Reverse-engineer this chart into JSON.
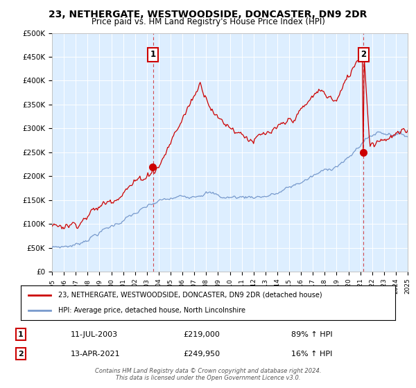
{
  "title": "23, NETHERGATE, WESTWOODSIDE, DONCASTER, DN9 2DR",
  "subtitle": "Price paid vs. HM Land Registry's House Price Index (HPI)",
  "title_fontsize": 10,
  "subtitle_fontsize": 8.5,
  "background_color": "#ffffff",
  "plot_bg_color": "#ddeeff",
  "grid_color": "#ffffff",
  "sale1": {
    "date_num": 2003.53,
    "price": 219000,
    "label": "1",
    "date_str": "11-JUL-2003",
    "hpi_change": "89% ↑ HPI"
  },
  "sale2": {
    "date_num": 2021.28,
    "price": 249950,
    "label": "2",
    "date_str": "13-APR-2021",
    "hpi_change": "16% ↑ HPI"
  },
  "sale1_formatted": "£219,000",
  "sale2_formatted": "£249,950",
  "red_color": "#cc0000",
  "blue_color": "#7799cc",
  "xmin": 1995,
  "xmax": 2025,
  "ymin": 0,
  "ymax": 500000,
  "yticks": [
    0,
    50000,
    100000,
    150000,
    200000,
    250000,
    300000,
    350000,
    400000,
    450000,
    500000
  ],
  "ytick_labels": [
    "£0",
    "£50K",
    "£100K",
    "£150K",
    "£200K",
    "£250K",
    "£300K",
    "£350K",
    "£400K",
    "£450K",
    "£500K"
  ],
  "xticks": [
    1995,
    1996,
    1997,
    1998,
    1999,
    2000,
    2001,
    2002,
    2003,
    2004,
    2005,
    2006,
    2007,
    2008,
    2009,
    2010,
    2011,
    2012,
    2013,
    2014,
    2015,
    2016,
    2017,
    2018,
    2019,
    2020,
    2021,
    2022,
    2023,
    2024,
    2025
  ],
  "legend_label_red": "23, NETHERGATE, WESTWOODSIDE, DONCASTER, DN9 2DR (detached house)",
  "legend_label_blue": "HPI: Average price, detached house, North Lincolnshire",
  "footer1": "Contains HM Land Registry data © Crown copyright and database right 2024.",
  "footer2": "This data is licensed under the Open Government Licence v3.0."
}
